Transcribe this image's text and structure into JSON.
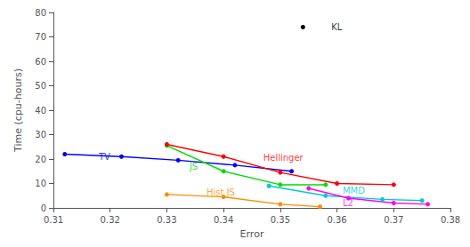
{
  "chart_data": {
    "type": "line",
    "xlabel": "Error",
    "ylabel": "Time (cpu-hours)",
    "xlim": [
      0.31,
      0.38
    ],
    "ylim": [
      0,
      80
    ],
    "xticks": [
      0.31,
      0.32,
      0.33,
      0.34,
      0.35,
      0.36,
      0.37,
      0.38
    ],
    "yticks": [
      0,
      10,
      20,
      30,
      40,
      50,
      60,
      70,
      80
    ],
    "grid": false,
    "series": [
      {
        "name": "KL",
        "color": "#000000",
        "marker": "circle",
        "line_style": "none",
        "x": [
          0.354
        ],
        "values": [
          74
        ]
      },
      {
        "name": "TV",
        "color": "#0000ff",
        "marker": "circle",
        "line_style": "solid",
        "x": [
          0.312,
          0.322,
          0.332,
          0.342,
          0.352
        ],
        "values": [
          22,
          21,
          19.5,
          17.5,
          15
        ]
      },
      {
        "name": "JS",
        "color": "#00dd00",
        "marker": "circle",
        "line_style": "solid",
        "x": [
          0.33,
          0.34,
          0.35,
          0.358
        ],
        "values": [
          25.5,
          15,
          9.5,
          9.5
        ]
      },
      {
        "name": "Hellinger",
        "color": "#ff0000",
        "marker": "circle",
        "line_style": "solid",
        "x": [
          0.33,
          0.34,
          0.35,
          0.36,
          0.37
        ],
        "values": [
          26,
          21,
          14.5,
          10,
          9.5
        ]
      },
      {
        "name": "Hist JS",
        "color": "#ff8c00",
        "marker": "circle",
        "line_style": "solid",
        "x": [
          0.33,
          0.34,
          0.35,
          0.357
        ],
        "values": [
          5.5,
          4.5,
          1.5,
          0.5
        ]
      },
      {
        "name": "MMD",
        "color": "#00cccc",
        "marker": "circle",
        "line_style": "solid",
        "x": [
          0.348,
          0.358,
          0.368,
          0.375
        ],
        "values": [
          9,
          5,
          3.5,
          3
        ]
      },
      {
        "name": "L2",
        "color": "#ff00ff",
        "marker": "circle",
        "line_style": "solid",
        "x": [
          0.355,
          0.362,
          0.37,
          0.376
        ],
        "values": [
          8,
          4,
          2,
          1.5
        ]
      }
    ],
    "annotations": [
      {
        "text": "KL",
        "x": 0.359,
        "y": 74,
        "color": "#000000"
      },
      {
        "text": "TV",
        "x": 0.318,
        "y": 21,
        "color": "#0000ff"
      },
      {
        "text": "JS",
        "x": 0.334,
        "y": 17,
        "color": "#00dd00"
      },
      {
        "text": "Hellinger",
        "x": 0.347,
        "y": 20.5,
        "color": "#ff0000"
      },
      {
        "text": "Hist JS",
        "x": 0.337,
        "y": 6.5,
        "color": "#ff8c00"
      },
      {
        "text": "MMD",
        "x": 0.361,
        "y": 7,
        "color": "#00cccc"
      },
      {
        "text": "L2",
        "x": 0.361,
        "y": 2,
        "color": "#ff00ff"
      }
    ]
  }
}
